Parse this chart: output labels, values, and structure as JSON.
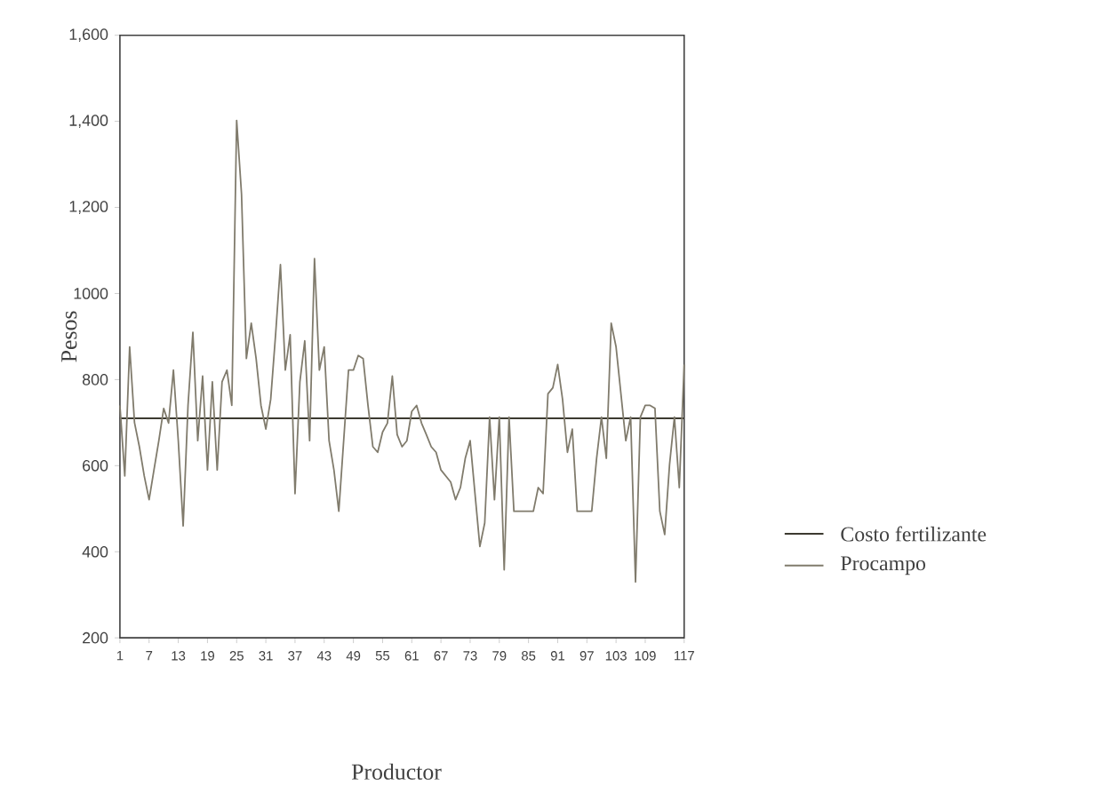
{
  "chart_data": {
    "type": "line",
    "xlabel": "Productor",
    "ylabel": "Pesos",
    "x": [
      1,
      2,
      3,
      4,
      5,
      6,
      7,
      8,
      9,
      10,
      11,
      12,
      13,
      14,
      15,
      16,
      17,
      18,
      19,
      20,
      21,
      22,
      23,
      24,
      25,
      26,
      27,
      28,
      29,
      30,
      31,
      32,
      33,
      34,
      35,
      36,
      37,
      38,
      39,
      40,
      41,
      42,
      43,
      44,
      45,
      46,
      47,
      48,
      49,
      50,
      51,
      52,
      53,
      54,
      55,
      56,
      57,
      58,
      59,
      60,
      61,
      62,
      63,
      64,
      65,
      66,
      67,
      68,
      69,
      70,
      71,
      72,
      73,
      74,
      75,
      76,
      77,
      78,
      79,
      80,
      81,
      82,
      83,
      84,
      85,
      86,
      87,
      88,
      89,
      90,
      91,
      92,
      93,
      94,
      95,
      96,
      97,
      98,
      99,
      100,
      101,
      102,
      103,
      104,
      105,
      106,
      107,
      108,
      109,
      110,
      111,
      112,
      113,
      114,
      115,
      116,
      117
    ],
    "series": [
      {
        "name": "Costo fertilizante",
        "color": "#3c3a30",
        "x": [
          1,
          117
        ],
        "values": [
          710,
          710
        ]
      },
      {
        "name": "Procampo",
        "color": "#807b6c",
        "values": [
          740,
          576,
          876,
          700,
          644,
          576,
          521,
          590,
          658,
          733,
          699,
          822,
          658,
          460,
          740,
          910,
          658,
          808,
          590,
          795,
          590,
          795,
          822,
          740,
          1402,
          1231,
          849,
          931,
          849,
          740,
          685,
          754,
          904,
          1067,
          822,
          904,
          535,
          795,
          890,
          658,
          1081,
          822,
          876,
          658,
          590,
          494,
          658,
          822,
          822,
          856,
          849,
          740,
          644,
          631,
          678,
          699,
          808,
          672,
          644,
          658,
          726,
          740,
          699,
          672,
          644,
          631,
          590,
          576,
          562,
          521,
          549,
          617,
          658,
          535,
          412,
          467,
          713,
          521,
          713,
          358,
          713,
          494,
          494,
          494,
          494,
          494,
          549,
          535,
          767,
          781,
          835,
          754,
          631,
          685,
          494,
          494,
          494,
          494,
          617,
          713,
          617,
          931,
          876,
          767,
          658,
          713,
          330,
          713,
          740,
          740,
          733,
          494,
          440,
          603,
          713,
          549,
          835
        ]
      }
    ],
    "xlim": [
      1,
      117
    ],
    "ylim": [
      200,
      1600
    ],
    "xticks": [
      1,
      7,
      13,
      19,
      25,
      31,
      37,
      43,
      49,
      55,
      61,
      67,
      73,
      79,
      85,
      91,
      97,
      103,
      109,
      117
    ],
    "yticks": [
      200,
      400,
      600,
      800,
      {
        "value": 1000,
        "label": "1000"
      },
      {
        "value": 1200,
        "label": "1,200"
      },
      {
        "value": 1400,
        "label": "1,400"
      },
      {
        "value": 1600,
        "label": "1,600"
      }
    ],
    "grid": false,
    "legend": "right",
    "marker": "none",
    "line_style": "solid"
  }
}
